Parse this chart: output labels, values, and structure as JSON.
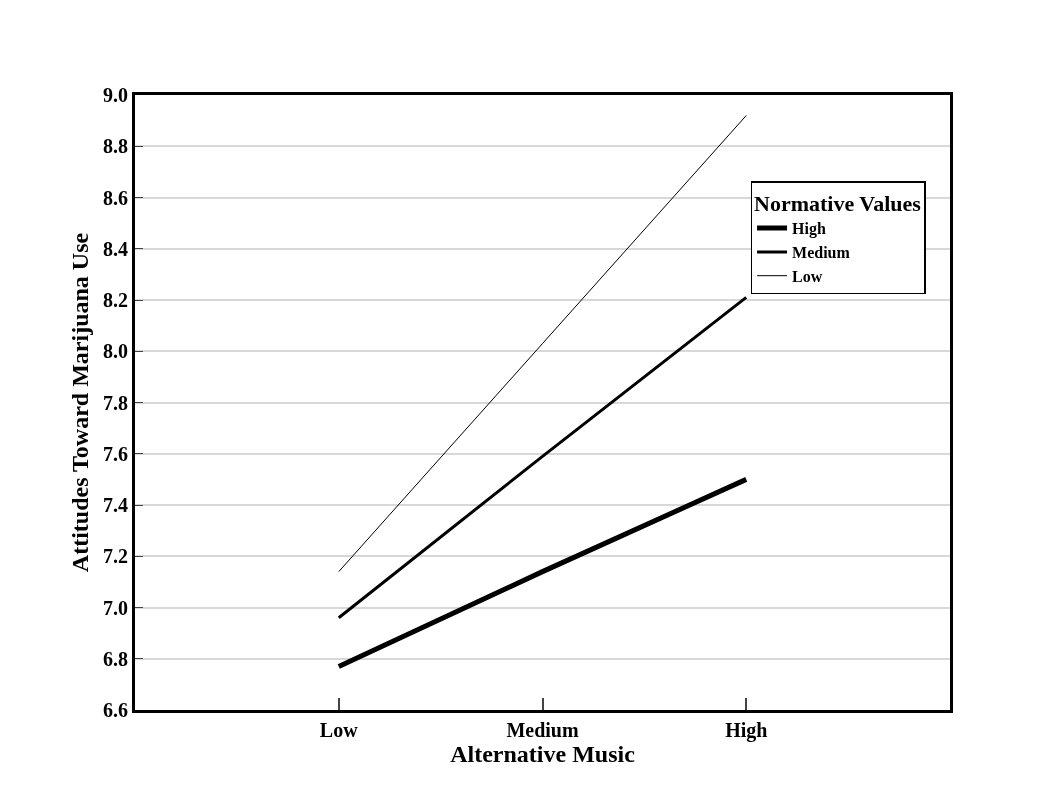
{
  "chart_data": {
    "type": "line",
    "xlabel": "Alternative Music",
    "ylabel": "Attitudes Toward Marijuana Use",
    "legend_title": "Normative Values",
    "categories": [
      "Low",
      "Medium",
      "High"
    ],
    "series": [
      {
        "name": "High",
        "color": "#000000",
        "values": [
          6.77,
          7.14,
          7.5
        ]
      },
      {
        "name": "Medium",
        "color": "#000000",
        "values": [
          6.96,
          7.59,
          8.21
        ]
      },
      {
        "name": "Low",
        "color": "#000000",
        "values": [
          7.14,
          8.03,
          8.92
        ]
      }
    ],
    "ylim": [
      6.6,
      9.0
    ],
    "yticks": [
      6.6,
      6.8,
      {
        "value": 7,
        "label": "7.0"
      },
      7.2,
      7.4,
      7.6,
      7.8,
      {
        "value": 8,
        "label": "8.0"
      },
      8.2,
      8.4,
      8.6,
      8.8,
      {
        "value": 9,
        "label": "9.0"
      }
    ],
    "grid": "y",
    "legend": "top right",
    "marker": "none",
    "line_style": "solid"
  }
}
